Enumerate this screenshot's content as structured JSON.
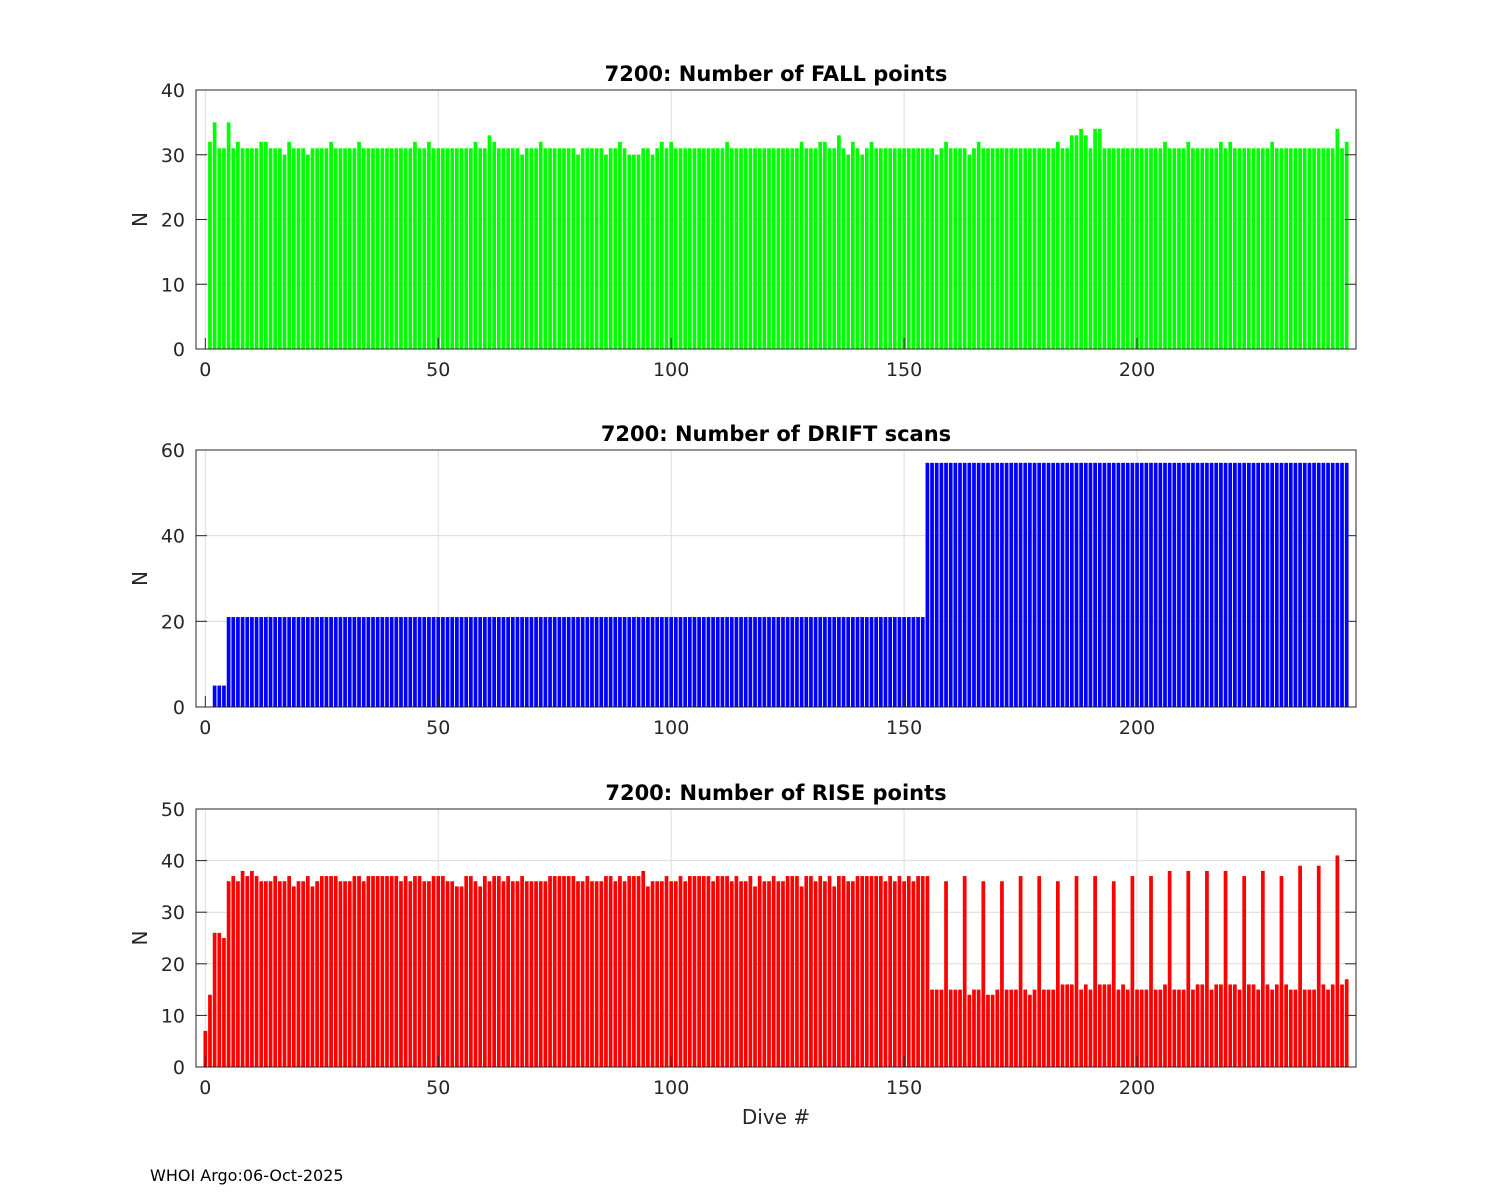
{
  "footer": "WHOI Argo:06-Oct-2025",
  "chart_data": [
    {
      "type": "bar",
      "title": "7200: Number of FALL points",
      "xlabel": "",
      "ylabel": "N",
      "color": "#00ff00",
      "xlim": [
        -2,
        247
      ],
      "ylim": [
        0,
        40
      ],
      "xticks": [
        0,
        50,
        100,
        150,
        200
      ],
      "yticks": [
        0,
        10,
        20,
        30,
        40
      ],
      "grid": true,
      "x_start": 0,
      "values": [
        0,
        32,
        35,
        31,
        31,
        35,
        31,
        32,
        31,
        31,
        31,
        31,
        32,
        32,
        31,
        31,
        31,
        30,
        32,
        31,
        31,
        31,
        30,
        31,
        31,
        31,
        31,
        32,
        31,
        31,
        31,
        31,
        31,
        32,
        31,
        31,
        31,
        31,
        31,
        31,
        31,
        31,
        31,
        31,
        31,
        32,
        31,
        31,
        32,
        31,
        31,
        31,
        31,
        31,
        31,
        31,
        31,
        31,
        32,
        31,
        31,
        33,
        32,
        31,
        31,
        31,
        31,
        31,
        30,
        31,
        31,
        31,
        32,
        31,
        31,
        31,
        31,
        31,
        31,
        31,
        30,
        31,
        31,
        31,
        31,
        31,
        30,
        31,
        31,
        32,
        31,
        30,
        30,
        30,
        31,
        31,
        30,
        31,
        32,
        31,
        32,
        31,
        31,
        31,
        31,
        31,
        31,
        31,
        31,
        31,
        31,
        31,
        32,
        31,
        31,
        31,
        31,
        31,
        31,
        31,
        31,
        31,
        31,
        31,
        31,
        31,
        31,
        31,
        32,
        31,
        31,
        31,
        32,
        32,
        31,
        31,
        33,
        31,
        30,
        32,
        31,
        30,
        31,
        32,
        31,
        31,
        31,
        31,
        31,
        31,
        31,
        31,
        31,
        31,
        31,
        31,
        31,
        30,
        31,
        32,
        31,
        31,
        31,
        31,
        30,
        31,
        32,
        31,
        31,
        31,
        31,
        31,
        31,
        31,
        31,
        31,
        31,
        31,
        31,
        31,
        31,
        31,
        31,
        32,
        31,
        31,
        33,
        33,
        34,
        33,
        31,
        34,
        34,
        31,
        31,
        31,
        31,
        31,
        31,
        31,
        31,
        31,
        31,
        31,
        31,
        31,
        32,
        31,
        31,
        31,
        31,
        32,
        31,
        31,
        31,
        31,
        31,
        31,
        32,
        31,
        32,
        31,
        31,
        31,
        31,
        31,
        31,
        31,
        31,
        32,
        31,
        31,
        31,
        31,
        31,
        31,
        31,
        31,
        31,
        31,
        31,
        31,
        31,
        34,
        31,
        32
      ]
    },
    {
      "type": "bar",
      "title": "7200: Number of DRIFT scans",
      "xlabel": "",
      "ylabel": "N",
      "color": "#0000ff",
      "xlim": [
        -2,
        247
      ],
      "ylim": [
        0,
        60
      ],
      "xticks": [
        0,
        50,
        100,
        150,
        200
      ],
      "yticks": [
        0,
        20,
        40,
        60
      ],
      "grid": true,
      "x_start": 0,
      "values": [
        0,
        0,
        5,
        5,
        5,
        21,
        21,
        21,
        21,
        21,
        21,
        21,
        21,
        21,
        21,
        21,
        21,
        21,
        21,
        21,
        21,
        21,
        21,
        21,
        21,
        21,
        21,
        21,
        21,
        21,
        21,
        21,
        21,
        21,
        21,
        21,
        21,
        21,
        21,
        21,
        21,
        21,
        21,
        21,
        21,
        21,
        21,
        21,
        21,
        21,
        21,
        21,
        21,
        21,
        21,
        21,
        21,
        21,
        21,
        21,
        21,
        21,
        21,
        21,
        21,
        21,
        21,
        21,
        21,
        21,
        21,
        21,
        21,
        21,
        21,
        21,
        21,
        21,
        21,
        21,
        21,
        21,
        21,
        21,
        21,
        21,
        21,
        21,
        21,
        21,
        21,
        21,
        21,
        21,
        21,
        21,
        21,
        21,
        21,
        21,
        21,
        21,
        21,
        21,
        21,
        21,
        21,
        21,
        21,
        21,
        21,
        21,
        21,
        21,
        21,
        21,
        21,
        21,
        21,
        21,
        21,
        21,
        21,
        21,
        21,
        21,
        21,
        21,
        21,
        21,
        21,
        21,
        21,
        21,
        21,
        21,
        21,
        21,
        21,
        21,
        21,
        21,
        21,
        21,
        21,
        21,
        21,
        21,
        21,
        21,
        21,
        21,
        21,
        21,
        21,
        57,
        57,
        57,
        57,
        57,
        57,
        57,
        57,
        57,
        57,
        57,
        57,
        57,
        57,
        57,
        57,
        57,
        57,
        57,
        57,
        57,
        57,
        57,
        57,
        57,
        57,
        57,
        57,
        57,
        57,
        57,
        57,
        57,
        57,
        57,
        57,
        57,
        57,
        57,
        57,
        57,
        57,
        57,
        57,
        57,
        57,
        57,
        57,
        57,
        57,
        57,
        57,
        57,
        57,
        57,
        57,
        57,
        57,
        57,
        57,
        57,
        57,
        57,
        57,
        57,
        57,
        57,
        57,
        57,
        57,
        57,
        57,
        57,
        57,
        57,
        57,
        57,
        57,
        57,
        57,
        57,
        57,
        57,
        57,
        57,
        57,
        57,
        57,
        57,
        57,
        57
      ]
    },
    {
      "type": "bar",
      "title": "7200: Number of RISE points",
      "xlabel": "Dive #",
      "ylabel": "N",
      "color": "#ff0000",
      "xlim": [
        -2,
        247
      ],
      "ylim": [
        0,
        50
      ],
      "xticks": [
        0,
        50,
        100,
        150,
        200
      ],
      "yticks": [
        0,
        10,
        20,
        30,
        40,
        50
      ],
      "grid": true,
      "x_start": 0,
      "values": [
        7,
        14,
        26,
        26,
        25,
        36,
        37,
        36,
        38,
        37,
        38,
        37,
        36,
        36,
        36,
        37,
        36,
        36,
        37,
        35,
        36,
        36,
        37,
        35,
        36,
        37,
        37,
        37,
        37,
        36,
        36,
        36,
        37,
        37,
        36,
        37,
        37,
        37,
        37,
        37,
        37,
        37,
        36,
        37,
        36,
        37,
        37,
        36,
        36,
        37,
        37,
        37,
        36,
        36,
        35,
        35,
        37,
        37,
        36,
        35,
        37,
        36,
        37,
        37,
        36,
        37,
        36,
        36,
        37,
        36,
        36,
        36,
        36,
        36,
        37,
        37,
        37,
        37,
        37,
        37,
        36,
        36,
        37,
        36,
        36,
        36,
        37,
        37,
        36,
        37,
        36,
        37,
        37,
        37,
        38,
        35,
        36,
        36,
        36,
        37,
        36,
        36,
        37,
        36,
        37,
        37,
        37,
        37,
        37,
        36,
        37,
        37,
        37,
        36,
        37,
        36,
        36,
        37,
        35,
        37,
        36,
        36,
        37,
        36,
        36,
        37,
        37,
        37,
        35,
        37,
        37,
        36,
        37,
        36,
        37,
        35,
        37,
        37,
        36,
        36,
        37,
        37,
        37,
        37,
        37,
        37,
        36,
        37,
        36,
        37,
        36,
        37,
        36,
        37,
        37,
        37,
        15,
        15,
        15,
        36,
        15,
        15,
        15,
        37,
        14,
        15,
        15,
        36,
        14,
        14,
        15,
        36,
        15,
        15,
        15,
        37,
        15,
        14,
        15,
        37,
        15,
        15,
        15,
        36,
        16,
        16,
        16,
        37,
        15,
        16,
        15,
        37,
        16,
        16,
        16,
        36,
        15,
        16,
        15,
        37,
        15,
        15,
        15,
        37,
        15,
        15,
        16,
        38,
        15,
        15,
        15,
        38,
        15,
        16,
        16,
        38,
        15,
        16,
        16,
        38,
        16,
        16,
        15,
        37,
        16,
        16,
        15,
        38,
        16,
        15,
        16,
        37,
        16,
        15,
        15,
        39,
        15,
        15,
        15,
        39,
        16,
        15,
        16,
        41,
        16,
        17
      ]
    }
  ]
}
